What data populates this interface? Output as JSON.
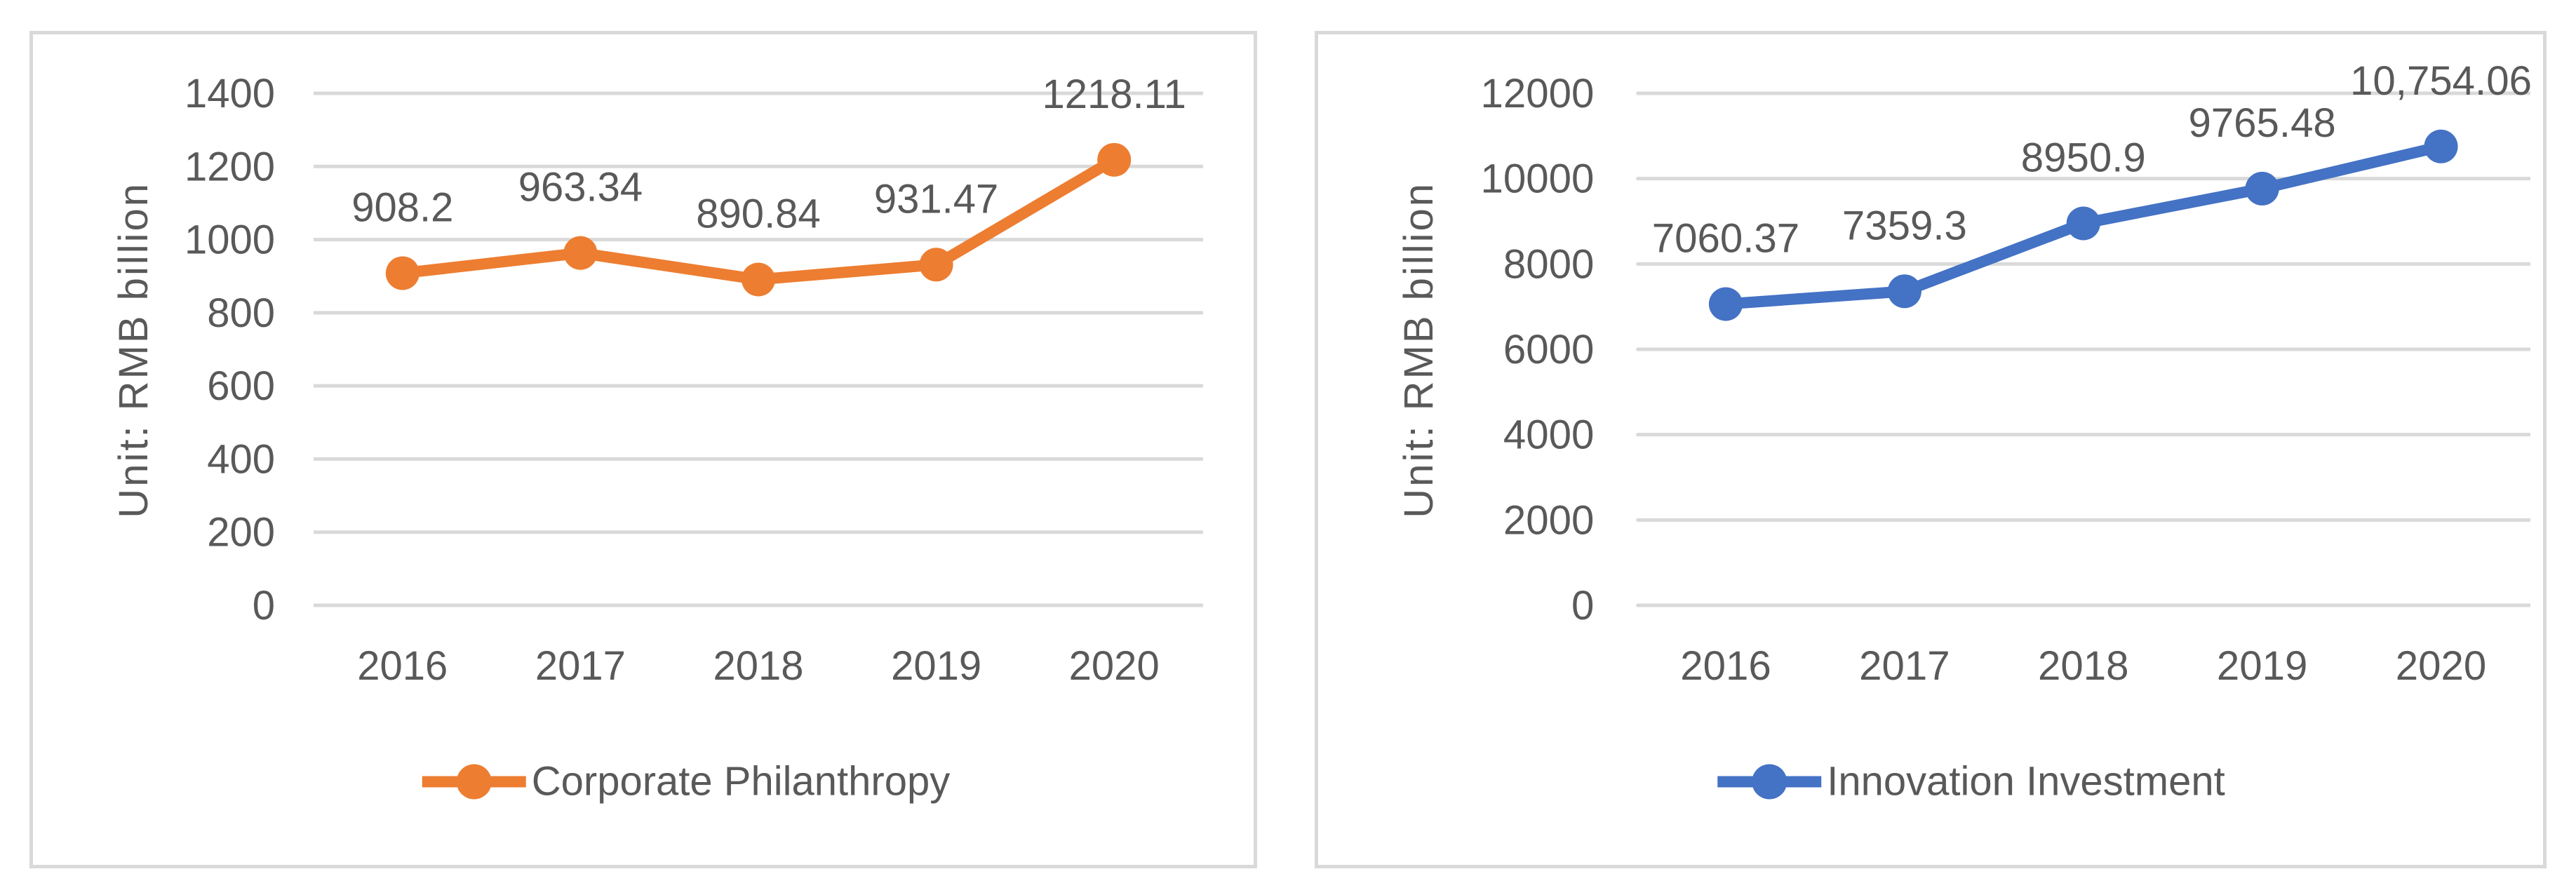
{
  "page": {
    "background": "#FFFFFF"
  },
  "colors": {
    "text": "#595959",
    "gridline": "#D9D9D9",
    "panel_border": "#D9D9D9",
    "orange": "#ED7D31",
    "blue": "#4472C4"
  },
  "chart_data": [
    {
      "type": "line",
      "title": "",
      "ylabel": "Unit: RMB billion",
      "categories": [
        "2016",
        "2017",
        "2018",
        "2019",
        "2020"
      ],
      "series": [
        {
          "name": "Corporate Philanthropy",
          "color": "#ED7D31",
          "values": [
            908.2,
            963.34,
            890.84,
            931.47,
            1218.11
          ],
          "data_labels": [
            "908.2",
            "963.34",
            "890.84",
            "931.47",
            "1218.11"
          ]
        }
      ],
      "ylim": [
        0,
        1400
      ],
      "ytick_step": 200,
      "ytick_labels": [
        "0",
        "200",
        "400",
        "600",
        "800",
        "1000",
        "1200",
        "1400"
      ],
      "grid": true,
      "legend_position": "bottom",
      "legend_label": "Corporate Philanthropy"
    },
    {
      "type": "line",
      "title": "",
      "ylabel": "Unit: RMB billion",
      "categories": [
        "2016",
        "2017",
        "2018",
        "2019",
        "2020"
      ],
      "series": [
        {
          "name": "Innovation Investment",
          "color": "#4472C4",
          "values": [
            7060.37,
            7359.3,
            8950.9,
            9765.48,
            10754.06
          ],
          "data_labels": [
            "7060.37",
            "7359.3",
            "8950.9",
            "9765.48",
            "10,754.06"
          ]
        }
      ],
      "ylim": [
        0,
        12000
      ],
      "ytick_step": 2000,
      "ytick_labels": [
        "0",
        "2000",
        "4000",
        "6000",
        "8000",
        "10000",
        "12000"
      ],
      "grid": true,
      "legend_position": "bottom",
      "legend_label": "Innovation Investment"
    }
  ]
}
